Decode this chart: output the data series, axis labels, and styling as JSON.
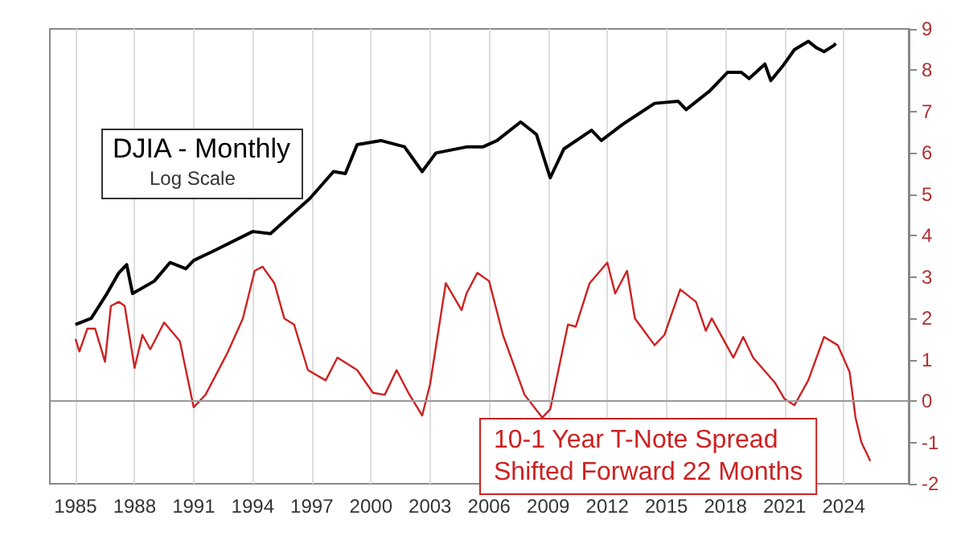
{
  "chart_data": {
    "type": "line",
    "xlim": [
      1983.7,
      2027.3
    ],
    "xticks": [
      1985,
      1988,
      1991,
      1994,
      1997,
      2000,
      2003,
      2006,
      2009,
      2012,
      2015,
      2018,
      2021,
      2024
    ],
    "ylim": [
      -2,
      9
    ],
    "yticks": [
      -2,
      -1,
      0,
      1,
      2,
      3,
      4,
      5,
      6,
      7,
      8,
      9
    ],
    "grid": "x",
    "legend": false,
    "marker": "none",
    "line_style": "solid",
    "annotations": [
      "Log Scale"
    ],
    "ref_lines": [
      {
        "axis": "y",
        "value": 0,
        "color": "#999999"
      }
    ],
    "series": [
      {
        "name": "DJIA - Monthly",
        "color": "#000000",
        "x": [
          1985.0,
          1985.8,
          1986.6,
          1987.2,
          1987.6,
          1987.9,
          1989.0,
          1989.8,
          1990.6,
          1991.0,
          1992.1,
          1994.0,
          1994.9,
          1996.9,
          1998.1,
          1998.7,
          1999.3,
          2000.5,
          2001.7,
          2002.6,
          2003.3,
          2004.9,
          2005.7,
          2006.4,
          2007.6,
          2008.4,
          2009.1,
          2009.8,
          2011.2,
          2011.7,
          2012.8,
          2013.6,
          2014.4,
          2015.6,
          2016.0,
          2017.2,
          2018.1,
          2018.8,
          2019.2,
          2020.0,
          2020.3,
          2020.9,
          2021.5,
          2022.2,
          2022.6,
          2023.0,
          2023.5,
          2023.6
        ],
        "values": [
          1.85,
          2.0,
          2.6,
          3.1,
          3.3,
          2.6,
          2.9,
          3.35,
          3.2,
          3.4,
          3.65,
          4.1,
          4.05,
          4.9,
          5.55,
          5.5,
          6.2,
          6.3,
          6.15,
          5.55,
          6.0,
          6.15,
          6.15,
          6.3,
          6.75,
          6.45,
          5.4,
          6.1,
          6.55,
          6.3,
          6.7,
          6.95,
          7.2,
          7.25,
          7.05,
          7.5,
          7.95,
          7.95,
          7.8,
          8.15,
          7.75,
          8.1,
          8.5,
          8.7,
          8.55,
          8.45,
          8.6,
          8.65
        ]
      },
      {
        "name": "10-1 Year T-Note Spread\nShifted Forward 22 Months",
        "color": "#cc2222",
        "x": [
          1985.0,
          1985.2,
          1985.6,
          1986.0,
          1986.5,
          1986.8,
          1987.2,
          1987.5,
          1988.0,
          1988.4,
          1988.8,
          1989.5,
          1990.3,
          1991.0,
          1991.6,
          1992.7,
          1993.5,
          1994.1,
          1994.5,
          1995.1,
          1995.6,
          1996.1,
          1996.8,
          1997.7,
          1998.3,
          1999.3,
          2000.1,
          2000.7,
          2001.3,
          2001.9,
          2002.6,
          2003.0,
          2003.8,
          2004.6,
          2004.85,
          2005.4,
          2006.0,
          2006.7,
          2007.8,
          2008.7,
          2009.1,
          2010.0,
          2010.4,
          2011.1,
          2012.0,
          2012.4,
          2013.0,
          2013.4,
          2014.4,
          2014.9,
          2015.7,
          2016.5,
          2017.0,
          2017.3,
          2018.4,
          2018.9,
          2019.4,
          2020.5,
          2021.0,
          2021.5,
          2022.2,
          2023.0,
          2023.7,
          2024.3,
          2024.6,
          2024.9,
          2025.35
        ],
        "values": [
          1.5,
          1.2,
          1.75,
          1.75,
          0.95,
          2.3,
          2.4,
          2.3,
          0.8,
          1.6,
          1.25,
          1.9,
          1.45,
          -0.15,
          0.15,
          1.15,
          2.0,
          3.15,
          3.25,
          2.85,
          2.0,
          1.85,
          0.75,
          0.5,
          1.05,
          0.75,
          0.2,
          0.15,
          0.75,
          0.2,
          -0.35,
          0.4,
          2.85,
          2.2,
          2.6,
          3.1,
          2.9,
          1.6,
          0.15,
          -0.4,
          -0.2,
          1.85,
          1.8,
          2.85,
          3.35,
          2.6,
          3.15,
          2.0,
          1.35,
          1.6,
          2.7,
          2.4,
          1.7,
          2.0,
          1.05,
          1.55,
          1.05,
          0.45,
          0.05,
          -0.1,
          0.5,
          1.55,
          1.35,
          0.7,
          -0.4,
          -1.0,
          -1.45
        ]
      }
    ]
  }
}
